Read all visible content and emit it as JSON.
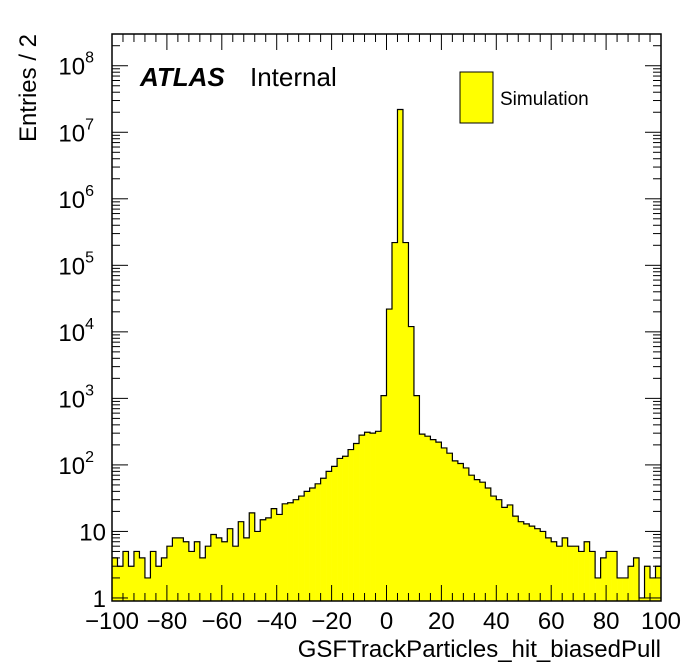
{
  "colors": {
    "fill": "#ffff00",
    "line": "#000000",
    "background": "#ffffff"
  },
  "labels": {
    "atlas": "ATLAS",
    "status": "Internal"
  },
  "legend": {
    "entry": "Simulation"
  },
  "chart_data": {
    "type": "bar",
    "xlabel": "GSFTrackParticles_hit_biasedPull",
    "ylabel": "Entries / 2",
    "xlim": [
      -100,
      100
    ],
    "ylim": [
      0.9,
      300000000
    ],
    "yscale": "log",
    "bin_width": 2,
    "x_ticks": [
      "−100",
      "−80",
      "−60",
      "−40",
      "−20",
      "0",
      "20",
      "40",
      "60",
      "80",
      "100"
    ],
    "y_ticks": [
      {
        "base": "1",
        "exp": ""
      },
      {
        "base": "10",
        "exp": ""
      },
      {
        "base": "10",
        "exp": "2"
      },
      {
        "base": "10",
        "exp": "3"
      },
      {
        "base": "10",
        "exp": "4"
      },
      {
        "base": "10",
        "exp": "5"
      },
      {
        "base": "10",
        "exp": "6"
      },
      {
        "base": "10",
        "exp": "7"
      },
      {
        "base": "10",
        "exp": "8"
      }
    ],
    "legend": [
      "Simulation"
    ],
    "legend_position": "top-right",
    "grid": false,
    "bin_edges_start": -100,
    "values": [
      4,
      3,
      5,
      3,
      5,
      4,
      2,
      5,
      3,
      4,
      6,
      8,
      8,
      7,
      5,
      7,
      4,
      6,
      9,
      8,
      7,
      11,
      6,
      14,
      8,
      19,
      10,
      15,
      16,
      22,
      18,
      26,
      27,
      30,
      34,
      40,
      45,
      52,
      63,
      80,
      95,
      125,
      135,
      170,
      210,
      280,
      310,
      300,
      320,
      1100,
      22000,
      220000,
      22000000,
      220000,
      12000,
      1100,
      290,
      270,
      240,
      220,
      180,
      150,
      115,
      105,
      90,
      70,
      60,
      55,
      45,
      34,
      30,
      23,
      25,
      17,
      14,
      13,
      12,
      11,
      10,
      8,
      7,
      6,
      8,
      6,
      6,
      5,
      7,
      5,
      2,
      4,
      5,
      5,
      2,
      2,
      3,
      4,
      1,
      3,
      2,
      3
    ]
  }
}
